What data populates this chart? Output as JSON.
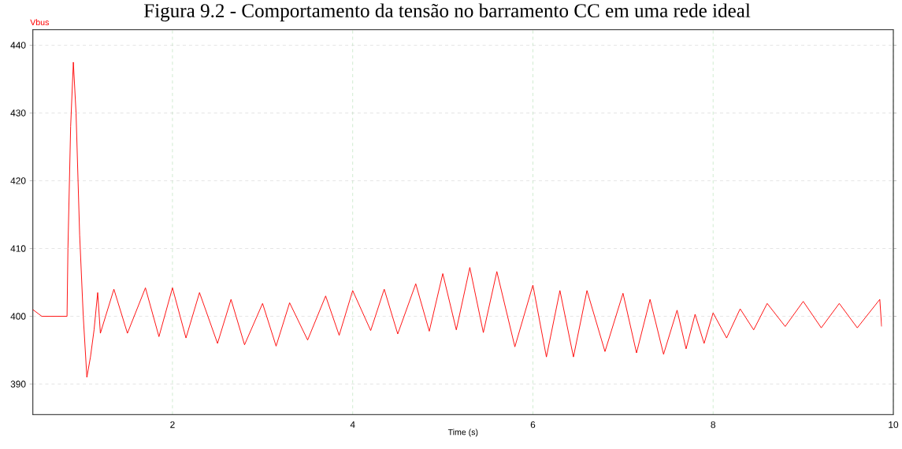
{
  "chart_data": {
    "type": "line",
    "title": "Figura 9.2 - Comportamento da tensão no barramento CC em uma rede ideal",
    "xlabel": "Time (s)",
    "xlim": [
      0.45,
      10
    ],
    "ylim": [
      385.5,
      442.3
    ],
    "xticks": [
      2,
      4,
      6,
      8,
      10
    ],
    "yticks": [
      390,
      400,
      410,
      420,
      430,
      440
    ],
    "grid": true,
    "marker": "none",
    "line_style": "solid",
    "legend": false,
    "series": [
      {
        "name": "Vbus",
        "color": "#ff0000",
        "x": [
          0.45,
          0.55,
          0.83,
          0.84,
          0.87,
          0.9,
          0.93,
          0.97,
          1.01,
          1.05,
          1.09,
          1.13,
          1.17,
          1.2,
          1.35,
          1.5,
          1.7,
          1.85,
          2.0,
          2.15,
          2.3,
          2.5,
          2.65,
          2.8,
          3.0,
          3.15,
          3.3,
          3.5,
          3.7,
          3.85,
          4.0,
          4.2,
          4.35,
          4.5,
          4.7,
          4.85,
          5.0,
          5.15,
          5.3,
          5.45,
          5.6,
          5.8,
          6.0,
          6.15,
          6.3,
          6.45,
          6.6,
          6.8,
          7.0,
          7.15,
          7.3,
          7.45,
          7.6,
          7.7,
          7.8,
          7.9,
          8.0,
          8.15,
          8.3,
          8.45,
          8.6,
          8.8,
          9.0,
          9.2,
          9.4,
          9.6,
          9.85,
          9.87
        ],
        "values": [
          401,
          400,
          400,
          410,
          428,
          437.5,
          430,
          412,
          400,
          391,
          394,
          398,
          403.5,
          397.5,
          404,
          397.5,
          404.2,
          397,
          404.2,
          396.8,
          403.5,
          396,
          402.5,
          395.8,
          401.9,
          395.6,
          402,
          396.5,
          403,
          397.2,
          403.8,
          397.9,
          404,
          397.4,
          404.8,
          397.8,
          406.3,
          398,
          407.2,
          397.6,
          406.6,
          395.5,
          404.6,
          394,
          403.8,
          394,
          403.8,
          394.8,
          403.4,
          394.6,
          402.5,
          394.4,
          400.9,
          395.2,
          400.3,
          396,
          400.5,
          396.8,
          401.1,
          398,
          401.9,
          398.5,
          402.2,
          398.3,
          401.9,
          398.3,
          402.5,
          398.5
        ]
      }
    ]
  }
}
